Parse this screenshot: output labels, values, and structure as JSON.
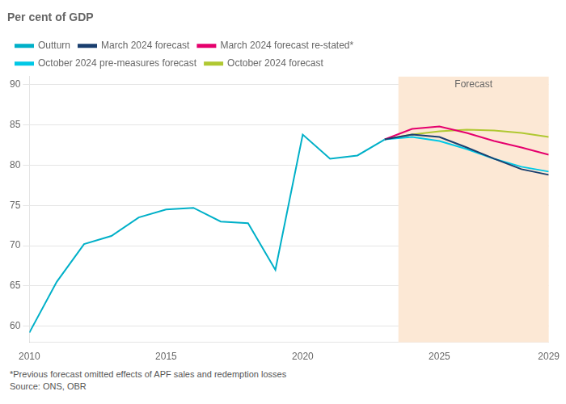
{
  "chart_data": {
    "type": "line",
    "title": "Per cent of GDP",
    "footnotes": [
      "*Previous forecast omitted effects of APF sales and redemption losses",
      "Source: ONS, OBR"
    ],
    "shaded": {
      "from": 2023.5,
      "to": 2029,
      "label": "Forecast",
      "color": "#fce8d5"
    },
    "xlim": [
      2010,
      2029
    ],
    "xticks": [
      2010,
      2015,
      2020,
      2025,
      2029
    ],
    "ylim": [
      58,
      91
    ],
    "yticks": [
      60,
      65,
      70,
      75,
      80,
      85,
      90
    ],
    "grid": "y",
    "legend": "top",
    "series": [
      {
        "name": "Outturn",
        "color": "#00b0c8",
        "x": [
          2010,
          2011,
          2012,
          2013,
          2014,
          2015,
          2016,
          2017,
          2018,
          2019,
          2020,
          2021,
          2022,
          2023
        ],
        "values": [
          59.2,
          65.5,
          70.2,
          71.2,
          73.5,
          74.5,
          74.7,
          73.0,
          72.8,
          67.0,
          83.8,
          80.8,
          81.2,
          83.2
        ]
      },
      {
        "name": "March 2024 forecast",
        "color": "#1a3f6f",
        "x": [
          2023,
          2024,
          2025,
          2026,
          2027,
          2028,
          2029
        ],
        "values": [
          83.2,
          83.8,
          83.5,
          82.2,
          80.8,
          79.5,
          78.8
        ]
      },
      {
        "name": "March 2024 forecast re-stated*",
        "color": "#e5006d",
        "x": [
          2023,
          2024,
          2025,
          2026,
          2027,
          2028,
          2029
        ],
        "values": [
          83.2,
          84.5,
          84.8,
          84.0,
          83.0,
          82.2,
          81.3
        ]
      },
      {
        "name": "October 2024 pre-measures forecast",
        "color": "#00c8e6",
        "x": [
          2023,
          2024,
          2025,
          2026,
          2027,
          2028,
          2029
        ],
        "values": [
          83.2,
          83.5,
          83.0,
          82.0,
          80.8,
          79.8,
          79.2
        ]
      },
      {
        "name": "October 2024 forecast",
        "color": "#b0c832",
        "x": [
          2023,
          2024,
          2025,
          2026,
          2027,
          2028,
          2029
        ],
        "values": [
          83.2,
          83.8,
          84.2,
          84.4,
          84.3,
          84.0,
          83.5
        ]
      }
    ]
  }
}
